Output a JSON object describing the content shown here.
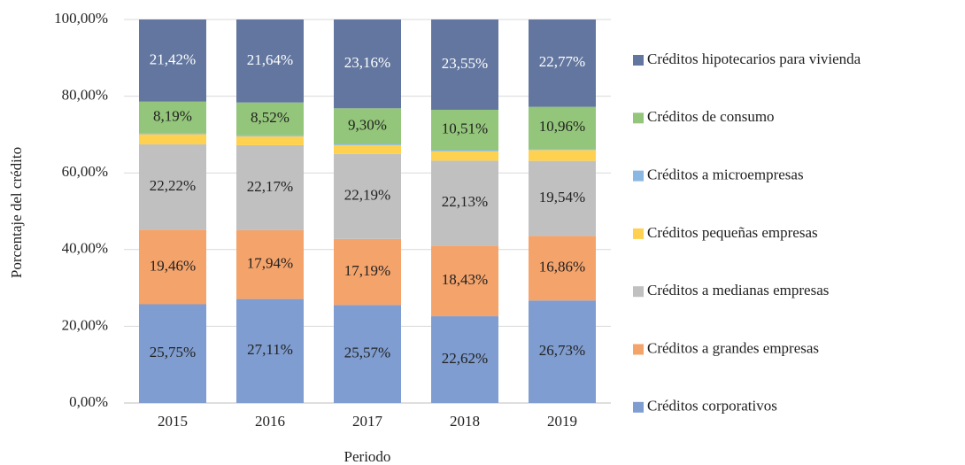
{
  "chart_data": {
    "type": "stacked_bar",
    "y_label": "Porcentaje del crédito",
    "x_label": "Periodo",
    "categories": [
      "2015",
      "2016",
      "2017",
      "2018",
      "2019"
    ],
    "ylim": [
      0,
      100
    ],
    "yticks": [
      {
        "value": 0,
        "label": "0,00%"
      },
      {
        "value": 20,
        "label": "20,00%"
      },
      {
        "value": 40,
        "label": "40,00%"
      },
      {
        "value": 60,
        "label": "60,00%"
      },
      {
        "value": 80,
        "label": "80,00%"
      },
      {
        "value": 100,
        "label": "100,00%"
      }
    ],
    "grid": true,
    "legend": "right",
    "series": [
      {
        "name": "Créditos corporativos",
        "color": "#7f9dd0",
        "values": [
          25.75,
          27.11,
          25.57,
          22.62,
          26.73
        ],
        "value_labels": [
          "25,75%",
          "27,11%",
          "25,57%",
          "22,62%",
          "26,73%"
        ]
      },
      {
        "name": "Créditos a grandes empresas",
        "color": "#f4a36b",
        "values": [
          19.46,
          17.94,
          17.19,
          18.43,
          16.86
        ],
        "value_labels": [
          "19,46%",
          "17,94%",
          "17,19%",
          "18,43%",
          "16,86%"
        ]
      },
      {
        "name": "Créditos a medianas empresas",
        "color": "#c0c0c0",
        "values": [
          22.22,
          22.17,
          22.19,
          22.13,
          19.54
        ],
        "value_labels": [
          "22,22%",
          "22,17%",
          "22,19%",
          "22,13%",
          "19,54%"
        ]
      },
      {
        "name": "Créditos pequeñas empresas",
        "color": "#fed250",
        "values": [
          2.66,
          2.32,
          2.29,
          2.46,
          2.84
        ]
      },
      {
        "name": "Créditos a microempresas",
        "color": "#8bb8e2",
        "values": [
          0.3,
          0.3,
          0.3,
          0.3,
          0.3
        ]
      },
      {
        "name": "Créditos de consumo",
        "color": "#93c57a",
        "values": [
          8.19,
          8.52,
          9.3,
          10.51,
          10.96
        ],
        "value_labels": [
          "8,19%",
          "8,52%",
          "9,30%",
          "10,51%",
          "10,96%"
        ]
      },
      {
        "name": "Créditos hipotecarios para vivienda",
        "color": "#62769f",
        "values": [
          21.42,
          21.64,
          23.16,
          23.55,
          22.77
        ],
        "value_labels": [
          "21,42%",
          "21,64%",
          "23,16%",
          "23,55%",
          "22,77%"
        ]
      }
    ]
  }
}
